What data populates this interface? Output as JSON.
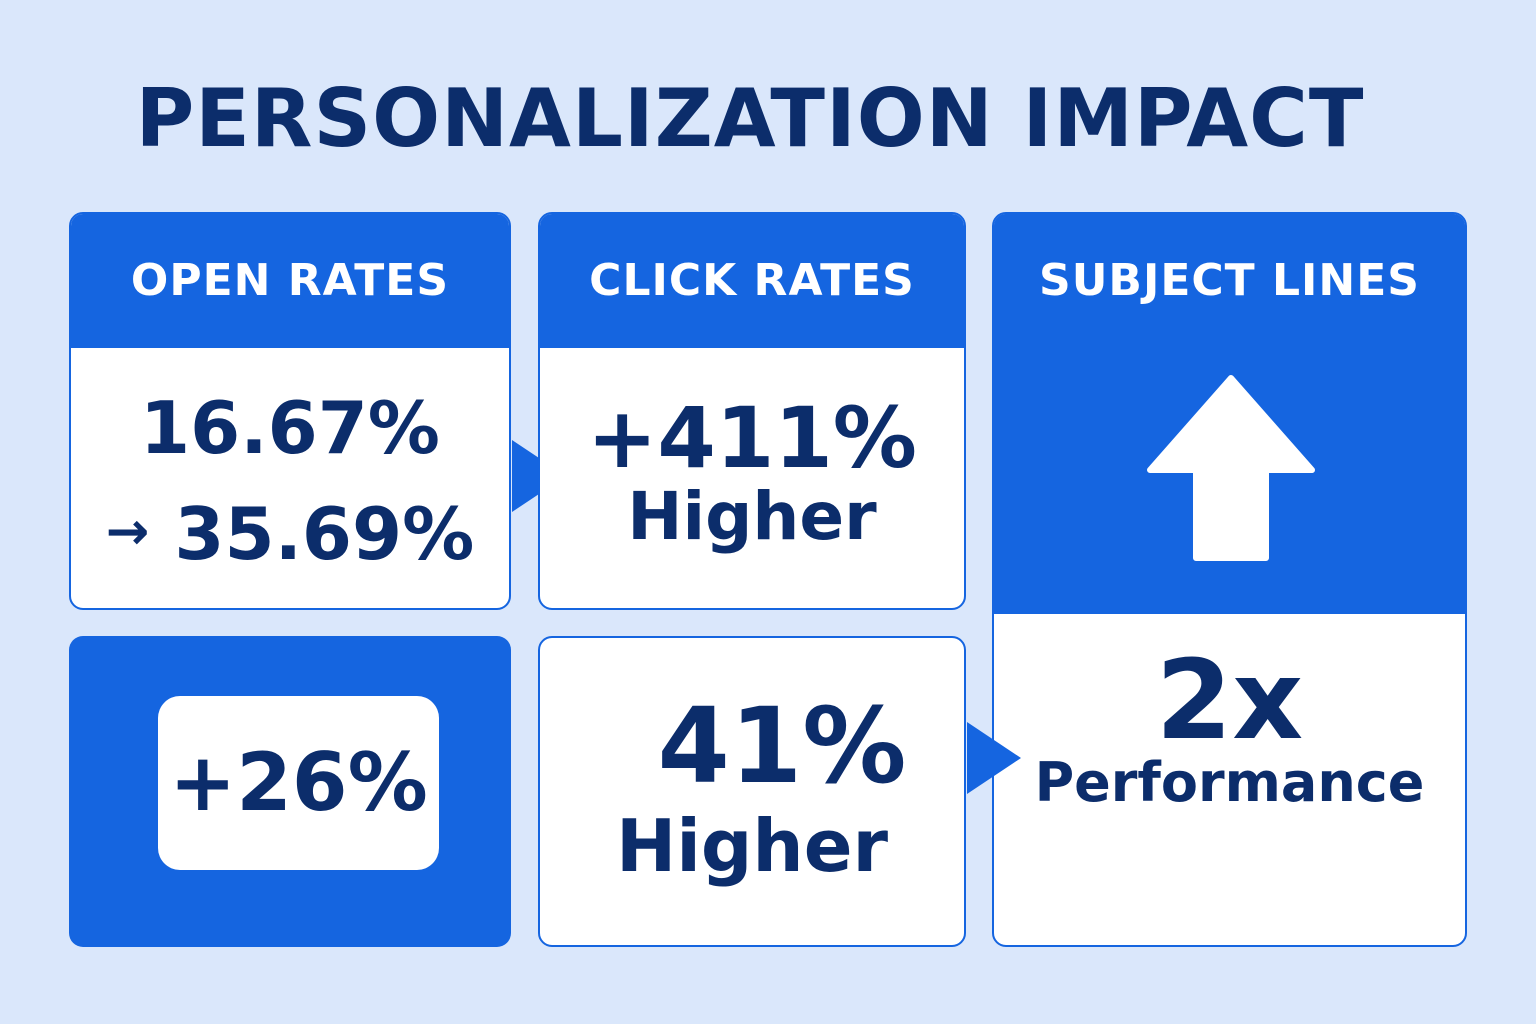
{
  "title": "PERSONALIZATION IMPACT",
  "colors": {
    "primary": "#1565e0",
    "text": "#0c2d6b",
    "background": "#dae7fb"
  },
  "cards": {
    "open_rates": {
      "header": "OPEN RATES",
      "line1": "16.67%",
      "arrow": "→",
      "line2": "35.69%"
    },
    "click_rates": {
      "header": "CLICK RATES",
      "value": "+411%",
      "caption": "Higher"
    },
    "subject_lines": {
      "header": "SUBJECT LINES",
      "icon": "up-arrow-icon",
      "value": "2x",
      "caption": "Performance"
    },
    "badge": {
      "value": "+26%"
    },
    "forty_one": {
      "value": "41%",
      "caption": "Higher"
    }
  }
}
